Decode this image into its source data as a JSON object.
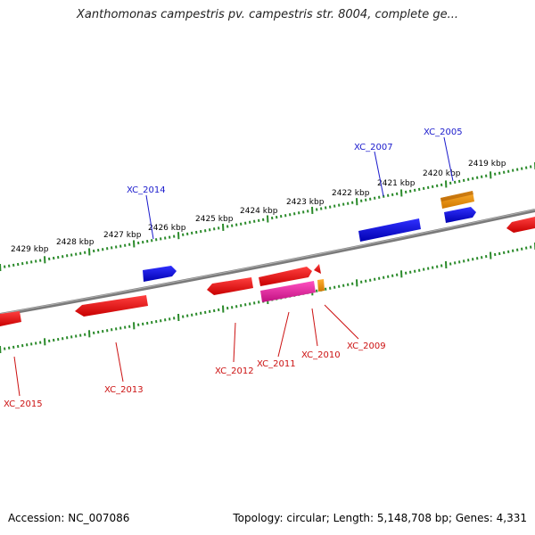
{
  "title": "Xanthomonas campestris pv. campestris str. 8004, complete ge...",
  "footer": {
    "accession": "Accession: NC_007086",
    "stats": "Topology: circular; Length: 5,148,708 bp; Genes: 4,331"
  },
  "colors": {
    "gene_red": "#ee1111",
    "gene_blue": "#0a0ad8",
    "gene_orange": "#f59a10",
    "gene_pink": "#f028a8",
    "backbone": "#777777",
    "ticks": "#2a8a2a",
    "label_blue": "#1a1acc",
    "label_red": "#cc1111"
  },
  "scale_labels": [
    "2429 kbp",
    "2428 kbp",
    "2427 kbp",
    "2426 kbp",
    "2425 kbp",
    "2424 kbp",
    "2423 kbp",
    "2422 kbp",
    "2421 kbp",
    "2420 kbp",
    "2419 kbp"
  ],
  "gene_labels": [
    "XC_2005",
    "XC_2007",
    "XC_2014",
    "XC_2015",
    "XC_2013",
    "XC_2012",
    "XC_2011",
    "XC_2010",
    "XC_2009"
  ]
}
